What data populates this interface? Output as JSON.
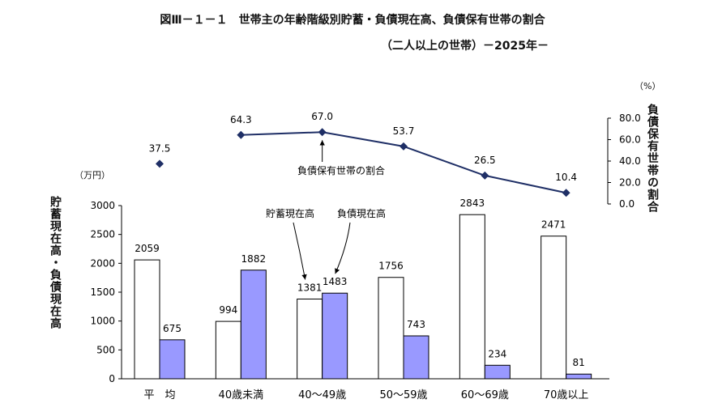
{
  "title": "図Ⅲ－１－１　世帯主の年齢階級別貯蓄・負債現在高、負債保有世帯の割合",
  "subtitle": "（二人以上の世帯）－2025年－",
  "left_unit": "（万円）",
  "right_unit": "（%）",
  "left_axis_label": "貯蓄現在高・負債現在高",
  "right_axis_label": "負債保有世帯の割合",
  "chart_data": {
    "type": "bar+line",
    "categories": [
      "平　均",
      "40歳未満",
      "40～49歳",
      "50～59歳",
      "60～69歳",
      "70歳以上"
    ],
    "bar_series": [
      {
        "name": "貯蓄現在高",
        "values": [
          2059,
          994,
          1381,
          1756,
          2843,
          2471
        ],
        "color": "#ffffff"
      },
      {
        "name": "負債現在高",
        "values": [
          675,
          1882,
          1483,
          743,
          234,
          81
        ],
        "color": "#9999ff"
      }
    ],
    "line_series": {
      "name": "負債保有世帯の割合",
      "values": [
        37.5,
        64.3,
        67.0,
        53.7,
        26.5,
        10.4
      ],
      "labels": [
        "37.5",
        "64.3",
        "67.0",
        "53.7",
        "26.5",
        "10.4"
      ],
      "color": "#1f2f66"
    },
    "left_axis": {
      "range": [
        0,
        3000
      ],
      "ticks": [
        "0",
        "500",
        "1000",
        "1500",
        "2000",
        "2500",
        "3000"
      ]
    },
    "right_axis": {
      "range": [
        0,
        80
      ],
      "ticks": [
        "0.0",
        "20.0",
        "40.0",
        "60.0",
        "80.0"
      ]
    },
    "bar_labels": {
      "savings": [
        "2059",
        "994",
        "1381",
        "1756",
        "2843",
        "2471"
      ],
      "debt": [
        "675",
        "1882",
        "1483",
        "743",
        "234",
        "81"
      ]
    },
    "annotations": [
      "貯蓄現在高",
      "負債現在高",
      "負債保有世帯の割合"
    ]
  }
}
